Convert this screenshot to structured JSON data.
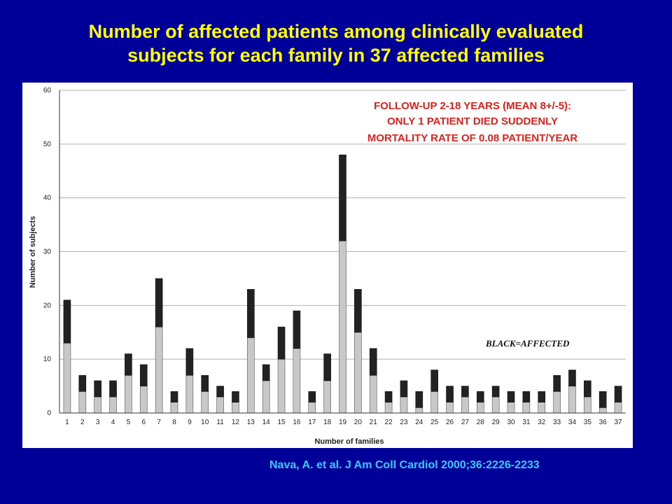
{
  "slide": {
    "title_line1": "Number of affected patients among clinically evaluated",
    "title_line2": "subjects for each family in 37 affected families",
    "citation": "Nava, A. et al. J Am Coll Cardiol 2000;36:2226-2233",
    "title_color": "#ffff00",
    "background_color": "#000099",
    "citation_color": "#33ccff"
  },
  "chart_data": {
    "type": "bar",
    "stacked": true,
    "xlabel": "Number of families",
    "ylabel": "Number of subjects",
    "ylim": [
      0,
      60
    ],
    "yticks": [
      0,
      10,
      20,
      30,
      40,
      50,
      60
    ],
    "grid": true,
    "categories": [
      "1",
      "2",
      "3",
      "4",
      "5",
      "6",
      "7",
      "8",
      "9",
      "10",
      "11",
      "12",
      "13",
      "14",
      "15",
      "16",
      "17",
      "18",
      "19",
      "20",
      "21",
      "22",
      "23",
      "24",
      "25",
      "26",
      "27",
      "28",
      "29",
      "30",
      "31",
      "32",
      "33",
      "34",
      "35",
      "36",
      "37"
    ],
    "series": [
      {
        "color": "#c8c8c8",
        "values": [
          13,
          4,
          3,
          3,
          7,
          5,
          16,
          2,
          7,
          4,
          3,
          2,
          14,
          6,
          10,
          12,
          2,
          6,
          32,
          15,
          7,
          2,
          3,
          1,
          4,
          2,
          3,
          2,
          3,
          2,
          2,
          2,
          4,
          5,
          3,
          1,
          2
        ]
      },
      {
        "color": "#222222",
        "values": [
          8,
          3,
          3,
          3,
          4,
          4,
          9,
          2,
          5,
          3,
          2,
          2,
          9,
          3,
          6,
          7,
          2,
          5,
          16,
          8,
          5,
          2,
          3,
          3,
          4,
          3,
          2,
          2,
          2,
          2,
          2,
          2,
          3,
          3,
          3,
          3,
          3
        ]
      }
    ],
    "totals": [
      21,
      7,
      6,
      6,
      11,
      9,
      25,
      4,
      12,
      7,
      5,
      4,
      23,
      9,
      16,
      19,
      4,
      11,
      48,
      23,
      12,
      4,
      6,
      4,
      8,
      5,
      5,
      4,
      5,
      4,
      4,
      4,
      7,
      8,
      6,
      4,
      5
    ],
    "annotations": [
      "FOLLOW-UP 2-18 YEARS (MEAN 8+/-5):",
      "ONLY 1 PATIENT DIED SUDDENLY",
      "MORTALITY RATE OF 0.08 PATIENT/YEAR"
    ],
    "legend_note": "BLACK=AFFECTED",
    "annotation_color": "#e0201a"
  }
}
